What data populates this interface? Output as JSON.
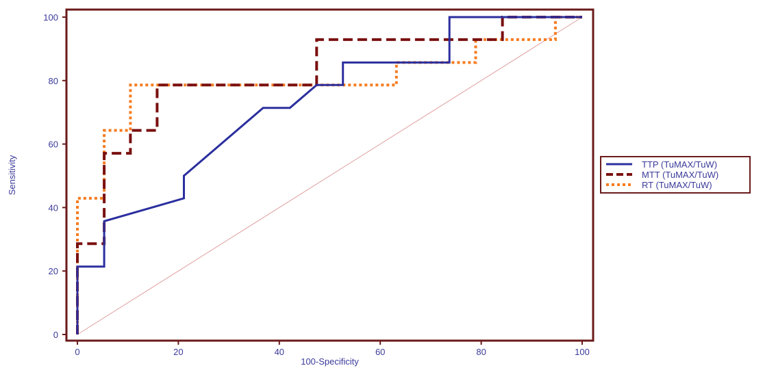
{
  "chart_data": {
    "type": "line",
    "xlabel": "100-Specificity",
    "ylabel": "Sensitivity",
    "xlim": [
      0,
      100
    ],
    "ylim": [
      0,
      100
    ],
    "xticks": [
      0,
      20,
      40,
      60,
      80,
      100
    ],
    "yticks": [
      0,
      20,
      40,
      60,
      80,
      100
    ],
    "grid": false,
    "legend_position": "right",
    "series": [
      {
        "name": "TTP (TuMAX/TuW)",
        "color": "#2b2f9e",
        "style": "solid",
        "x": [
          0,
          0,
          5.3,
          5.3,
          21.1,
          21.1,
          36.8,
          42.1,
          47.4,
          52.6,
          52.6,
          73.7,
          73.7,
          100
        ],
        "y": [
          0,
          21.4,
          21.4,
          35.7,
          42.9,
          50,
          71.4,
          71.4,
          78.6,
          78.6,
          85.7,
          85.7,
          100,
          100
        ]
      },
      {
        "name": "MTT (TuMAX/TuW)",
        "color": "#7a1010",
        "style": "dashed",
        "x": [
          0,
          0,
          5.3,
          5.3,
          10.5,
          10.5,
          15.8,
          15.8,
          47.4,
          47.4,
          84.2,
          84.2,
          100
        ],
        "y": [
          0,
          28.6,
          28.6,
          57.1,
          57.1,
          64.3,
          64.3,
          78.6,
          78.6,
          92.9,
          92.9,
          100,
          100
        ]
      },
      {
        "name": "RT (TuMAX/TuW)",
        "color": "#f57c1f",
        "style": "dotted",
        "x": [
          0,
          0,
          5.3,
          5.3,
          10.5,
          10.5,
          63.2,
          63.2,
          78.9,
          78.9,
          94.7,
          94.7,
          100
        ],
        "y": [
          0,
          42.9,
          42.9,
          64.3,
          64.3,
          78.6,
          78.6,
          85.7,
          85.7,
          92.9,
          92.9,
          100,
          100
        ]
      }
    ],
    "reference_line": {
      "color": "#e0a0a0",
      "x": [
        0,
        100
      ],
      "y": [
        0,
        100
      ]
    },
    "frame_color": "#6b1a1a"
  }
}
